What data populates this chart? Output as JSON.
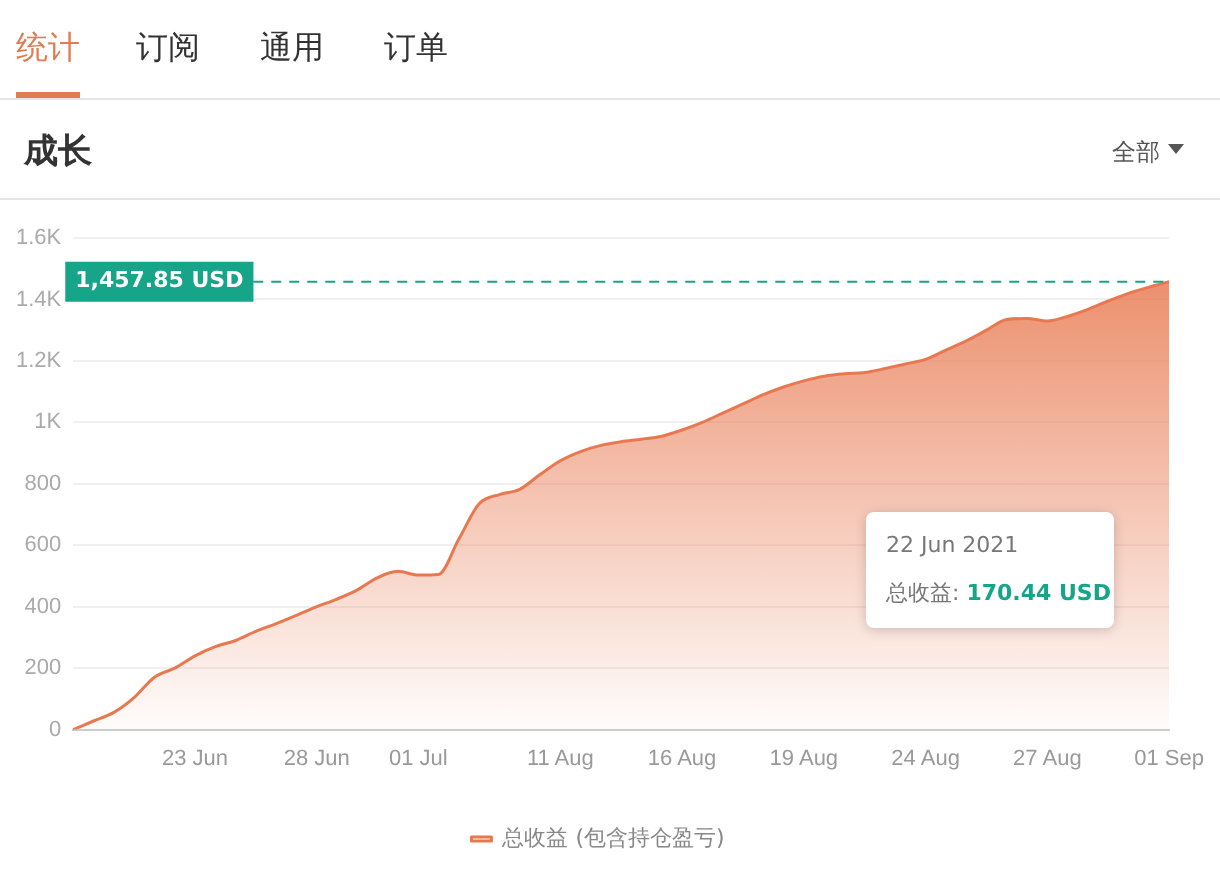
{
  "chart_data": {
    "type": "area",
    "title": "成长",
    "categories": [
      null,
      null,
      null,
      null,
      null,
      null,
      "23 Jun",
      null,
      null,
      null,
      null,
      null,
      "28 Jun",
      null,
      null,
      null,
      null,
      "01 Jul",
      null,
      null,
      null,
      null,
      null,
      null,
      "11 Aug",
      null,
      null,
      null,
      null,
      null,
      "16 Aug",
      null,
      null,
      null,
      null,
      null,
      "19 Aug",
      null,
      null,
      null,
      null,
      null,
      "24 Aug",
      null,
      null,
      null,
      null,
      null,
      "27 Aug",
      null,
      null,
      null,
      null,
      null,
      "01 Sep"
    ],
    "series": [
      {
        "name": "总收益 (包含持仓盈亏)",
        "color": "#e8784f",
        "values": [
          0,
          28,
          56,
          104,
          170.44,
          200,
          240,
          270,
          290,
          320,
          345,
          372,
          400,
          425,
          455,
          495,
          515,
          503,
          505,
          620,
          735,
          765,
          782,
          830,
          875,
          905,
          925,
          937,
          945,
          955,
          975,
          1000,
          1030,
          1060,
          1090,
          1115,
          1135,
          1150,
          1158,
          1162,
          1175,
          1190,
          1205,
          1235,
          1265,
          1300,
          1335,
          1338,
          1330,
          1345,
          1368,
          1395,
          1420,
          1440,
          1457.85
        ]
      }
    ],
    "ylim": [
      0,
      1600
    ],
    "yticks": [
      0,
      200,
      400,
      600,
      800,
      {
        "value": 1000,
        "label": "1K"
      },
      {
        "value": 1200,
        "label": "1.2K"
      },
      {
        "value": 1400,
        "label": "1.4K"
      },
      {
        "value": 1600,
        "label": "1.6K"
      }
    ],
    "grid": "y",
    "legend": "bottom",
    "marker": "none",
    "line_style": "solid",
    "ref_lines": [
      {
        "axis": "y",
        "value": 1457.85,
        "label": "1,457.85 USD",
        "color": "#17a589",
        "line_style": "dashed"
      }
    ],
    "annotations": [
      "统计",
      "订阅",
      "通用",
      "订单",
      "全部",
      "22 Jun 2021",
      "总收益: 170.44 USD"
    ]
  }
}
